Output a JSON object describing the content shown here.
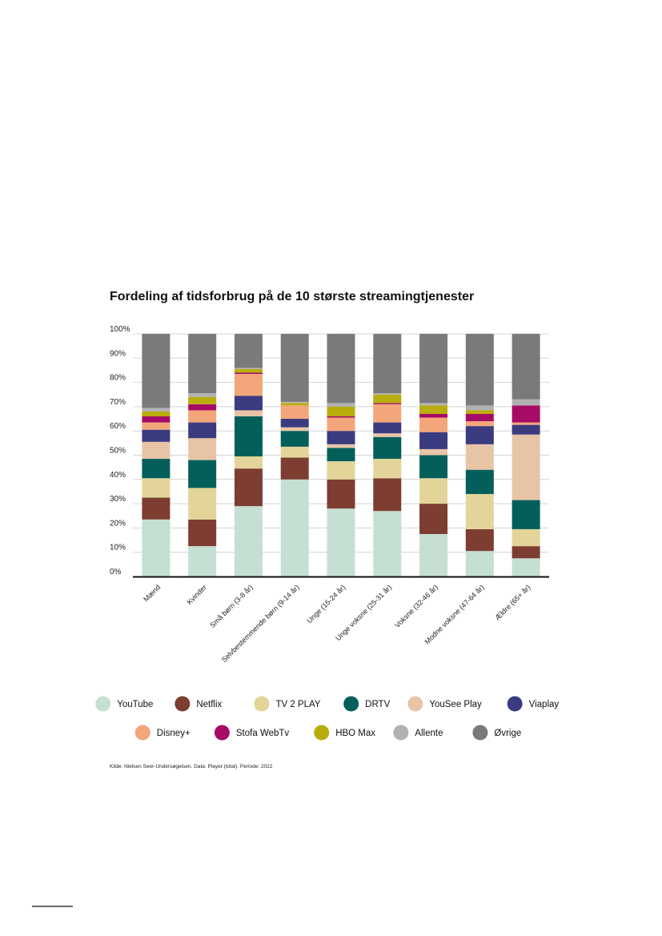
{
  "chart_data": {
    "type": "bar",
    "stacked": true,
    "title": "Fordeling af tidsforbrug på de 10 største streamingtjenester",
    "ylim": [
      0,
      100
    ],
    "yticks": [
      "0%",
      "10%",
      "20%",
      "30%",
      "40%",
      "50%",
      "60%",
      "70%",
      "80%",
      "90%",
      "100%"
    ],
    "categories": [
      "Mænd",
      "Kvinder",
      "Små børn (3-8 år)",
      "Selvbestemmende børn (9-14 år)",
      "Unge (15-24 år)",
      "Unge voksne (25-31 år)",
      "Voksne (32-46 år)",
      "Modne voksne (47-64 år)",
      "Ældre (65+ år)"
    ],
    "series": [
      {
        "name": "YouTube",
        "color": "#c5dfd3",
        "values": [
          23.5,
          12.5,
          29,
          40,
          28,
          27,
          17.5,
          10.5,
          7.5
        ]
      },
      {
        "name": "Netflix",
        "color": "#7e3d31",
        "values": [
          9,
          11,
          15.5,
          9,
          12,
          13.5,
          12.5,
          9,
          5
        ]
      },
      {
        "name": "TV 2 PLAY",
        "color": "#e3d599",
        "values": [
          8,
          13,
          5,
          4.5,
          7.5,
          8,
          10.5,
          14.5,
          7
        ]
      },
      {
        "name": "DRTV",
        "color": "#045f5b",
        "values": [
          8,
          11.5,
          16.5,
          6.5,
          5.5,
          9,
          9.5,
          10,
          12
        ]
      },
      {
        "name": "YouSee Play",
        "color": "#e8c4a7",
        "values": [
          7,
          9,
          2.5,
          1.5,
          1.5,
          1.5,
          2.5,
          10.5,
          27
        ]
      },
      {
        "name": "Viaplay",
        "color": "#3b3b80",
        "values": [
          5,
          6.5,
          6,
          3.5,
          5.5,
          4.5,
          7,
          7.5,
          4
        ]
      },
      {
        "name": "Disney+",
        "color": "#f4a67b",
        "values": [
          3,
          5,
          9,
          5.5,
          5.5,
          7.5,
          6,
          2,
          1
        ]
      },
      {
        "name": "Stofa WebTv",
        "color": "#a50b67",
        "values": [
          2.5,
          2.5,
          0.5,
          0,
          0.5,
          0.5,
          1.5,
          3,
          7
        ]
      },
      {
        "name": "HBO Max",
        "color": "#b8ad0d",
        "values": [
          2,
          3,
          1.5,
          1,
          4,
          3.5,
          3.5,
          1.5,
          0
        ]
      },
      {
        "name": "Allente",
        "color": "#b1b1b1",
        "values": [
          1.5,
          1.5,
          0.5,
          0.5,
          1.5,
          0.5,
          1,
          2,
          2.5
        ]
      },
      {
        "name": "Øvrige",
        "color": "#7a7a7a",
        "values": [
          30.5,
          24.5,
          14,
          28,
          28.5,
          24.5,
          28.5,
          29.5,
          27
        ]
      }
    ]
  },
  "source_note": "Kilde: Nielsen Seer-Undersøgelsen. Data: Player (total). Periode: 2022"
}
